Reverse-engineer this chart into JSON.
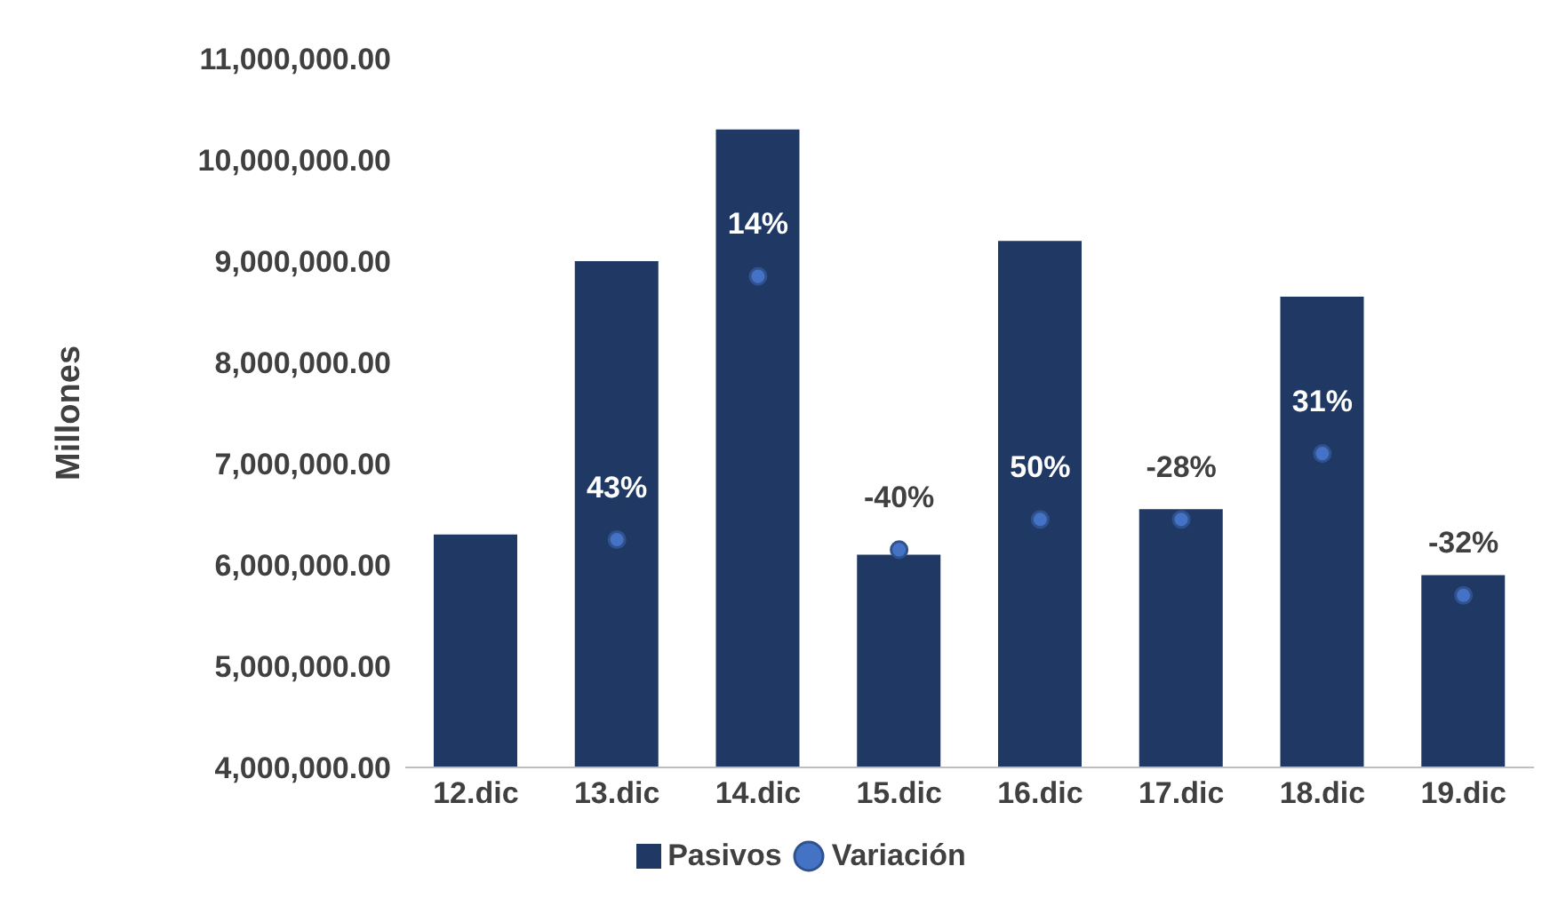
{
  "chart_data": {
    "type": "bar",
    "ylabel": "Millones",
    "categories": [
      "12.dic",
      "13.dic",
      "14.dic",
      "15.dic",
      "16.dic",
      "17.dic",
      "18.dic",
      "19.dic"
    ],
    "series": [
      {
        "name": "Pasivos",
        "color": "#203864",
        "values": [
          6300000,
          9000000,
          10300000,
          6100000,
          9200000,
          6550000,
          8650000,
          5900000
        ]
      },
      {
        "name": "Variación",
        "type": "scatter",
        "color": "#4472c4",
        "x": [
          "13.dic",
          "14.dic",
          "15.dic",
          "16.dic",
          "17.dic",
          "18.dic",
          "19.dic"
        ],
        "values": [
          6250000,
          8850000,
          6150000,
          6450000,
          6450000,
          7100000,
          5700000
        ]
      }
    ],
    "ylim": [
      4000000,
      11000000
    ],
    "yticks": [
      {
        "value": 4000000,
        "label": "4,000,000.00"
      },
      {
        "value": 5000000,
        "label": "5,000,000.00"
      },
      {
        "value": 6000000,
        "label": "6,000,000.00"
      },
      {
        "value": 7000000,
        "label": "7,000,000.00"
      },
      {
        "value": 8000000,
        "label": "8,000,000.00"
      },
      {
        "value": 9000000,
        "label": "9,000,000.00"
      },
      {
        "value": 10000000,
        "label": "10,000,000.00"
      },
      {
        "value": 11000000,
        "label": "11,000,000.00"
      }
    ],
    "annotations": [
      {
        "text": "43%",
        "x": "13.dic",
        "y": 6250000
      },
      {
        "text": "14%",
        "x": "14.dic",
        "y": 8850000
      },
      {
        "text": "-40%",
        "x": "15.dic",
        "y": 6150000
      },
      {
        "text": "50%",
        "x": "16.dic",
        "y": 6450000
      },
      {
        "text": "-28%",
        "x": "17.dic",
        "y": 6450000
      },
      {
        "text": "31%",
        "x": "18.dic",
        "y": 7100000
      },
      {
        "text": "-32%",
        "x": "19.dic",
        "y": 5700000
      }
    ],
    "grid": false,
    "legend": "bottom",
    "marker": "circle"
  }
}
